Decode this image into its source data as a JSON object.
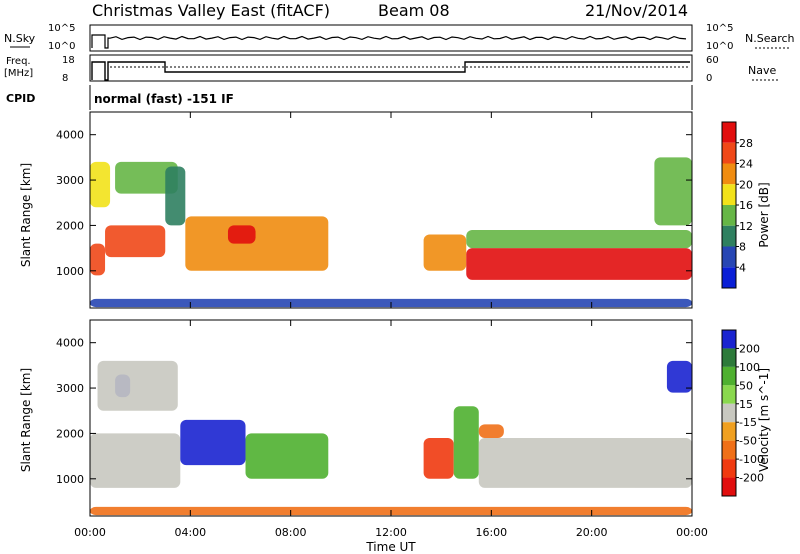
{
  "header": {
    "station": "Christmas Valley East (fitACF)",
    "beam": "Beam 08",
    "date": "21/Nov/2014"
  },
  "aux": {
    "nsky_label": "N.Sky",
    "nsearch_label": "N.Search",
    "freq_label_1": "Freq.",
    "freq_label_2": "[MHz]",
    "nave_label": "Nave",
    "cpid_label": "CPID",
    "cpid_text": "normal (fast) -151 IF",
    "left_ticks_top": [
      "10^5",
      "10^0"
    ],
    "right_ticks_top": [
      "10^5",
      "10^0"
    ],
    "left_ticks_freq": [
      "18",
      "8"
    ],
    "right_ticks_freq": [
      "60",
      "0"
    ]
  },
  "colors": {
    "power": [
      "#0a1fd6",
      "#2746b4",
      "#2f8060",
      "#66b646",
      "#f2e21a",
      "#f08c10",
      "#f04818",
      "#e10e0e"
    ],
    "velocity": [
      "#1a24d0",
      "#2d7a3a",
      "#4fb030",
      "#8ad84e",
      "#c8c8c0",
      "#f0a020",
      "#f07018",
      "#f03a10",
      "#e10e0e"
    ]
  },
  "chart_data": [
    {
      "type": "heatmap",
      "name": "power",
      "xlabel": "Time UT",
      "ylabel": "Slant Range [km]",
      "x_ticks": [
        "00:00",
        "04:00",
        "08:00",
        "12:00",
        "16:00",
        "20:00",
        "00:00"
      ],
      "x_range_hours": [
        0,
        24
      ],
      "y_range_km": [
        180,
        4500
      ],
      "y_ticks": [
        1000,
        2000,
        3000,
        4000
      ],
      "colorbar": {
        "label": "Power [dB]",
        "ticks": [
          "4",
          "8",
          "12",
          "16",
          "20",
          "24",
          "28"
        ],
        "range": [
          0,
          30
        ]
      },
      "regions": [
        {
          "t0": 0.0,
          "t1": 0.6,
          "r0": 900,
          "r1": 1600,
          "value": 26
        },
        {
          "t0": 0.6,
          "t1": 3.0,
          "r0": 1300,
          "r1": 2000,
          "value": 24
        },
        {
          "t0": 0.0,
          "t1": 0.8,
          "r0": 2400,
          "r1": 3400,
          "value": 18
        },
        {
          "t0": 1.0,
          "t1": 3.5,
          "r0": 2700,
          "r1": 3400,
          "value": 14
        },
        {
          "t0": 3.0,
          "t1": 3.8,
          "r0": 2000,
          "r1": 3300,
          "value": 10
        },
        {
          "t0": 3.8,
          "t1": 9.5,
          "r0": 1000,
          "r1": 2200,
          "value": 22
        },
        {
          "t0": 5.5,
          "t1": 6.6,
          "r0": 1600,
          "r1": 2000,
          "value": 28
        },
        {
          "t0": 13.3,
          "t1": 15.0,
          "r0": 1000,
          "r1": 1800,
          "value": 22
        },
        {
          "t0": 15.0,
          "t1": 24.0,
          "r0": 800,
          "r1": 1500,
          "value": 30
        },
        {
          "t0": 15.0,
          "t1": 24.0,
          "r0": 1500,
          "r1": 1900,
          "value": 14
        },
        {
          "t0": 22.5,
          "t1": 24.0,
          "r0": 2000,
          "r1": 3500,
          "value": 12
        },
        {
          "t0": 0.0,
          "t1": 24.0,
          "r0": 200,
          "r1": 380,
          "value": 6
        }
      ]
    },
    {
      "type": "heatmap",
      "name": "velocity",
      "xlabel": "Time UT",
      "ylabel": "Slant Range [km]",
      "x_ticks": [
        "00:00",
        "04:00",
        "08:00",
        "12:00",
        "16:00",
        "20:00",
        "00:00"
      ],
      "x_range_hours": [
        0,
        24
      ],
      "y_range_km": [
        180,
        4500
      ],
      "y_ticks": [
        1000,
        2000,
        3000,
        4000
      ],
      "colorbar": {
        "label": "Velocity [m s^-1]",
        "ticks": [
          "200",
          "100",
          "50",
          "15",
          "-15",
          "-50",
          "-100",
          "-200"
        ]
      },
      "regions": [
        {
          "t0": 0.0,
          "t1": 3.6,
          "r0": 800,
          "r1": 2000,
          "value": 0
        },
        {
          "t0": 3.6,
          "t1": 6.2,
          "r0": 1300,
          "r1": 2300,
          "value": 200
        },
        {
          "t0": 6.2,
          "t1": 9.5,
          "r0": 1000,
          "r1": 2000,
          "value": 60
        },
        {
          "t0": 1.0,
          "t1": 1.6,
          "r0": 2800,
          "r1": 3300,
          "value": 200
        },
        {
          "t0": 0.3,
          "t1": 3.5,
          "r0": 2500,
          "r1": 3600,
          "value": 0
        },
        {
          "t0": 13.3,
          "t1": 14.5,
          "r0": 1000,
          "r1": 1900,
          "value": -80
        },
        {
          "t0": 14.5,
          "t1": 15.5,
          "r0": 1000,
          "r1": 2600,
          "value": 60
        },
        {
          "t0": 15.5,
          "t1": 24.0,
          "r0": 800,
          "r1": 1900,
          "value": 0
        },
        {
          "t0": 15.5,
          "t1": 16.5,
          "r0": 1900,
          "r1": 2200,
          "value": -60
        },
        {
          "t0": 23.0,
          "t1": 24.0,
          "r0": 2900,
          "r1": 3600,
          "value": 200
        },
        {
          "t0": 0.0,
          "t1": 24.0,
          "r0": 200,
          "r1": 380,
          "value": -60
        }
      ]
    }
  ]
}
